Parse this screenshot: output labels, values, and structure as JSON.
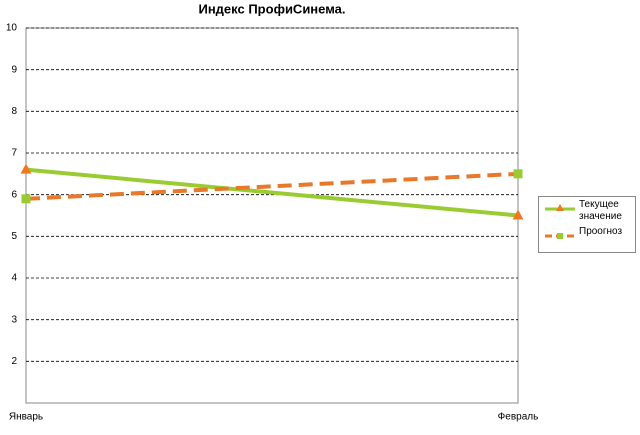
{
  "chart_data": {
    "type": "line",
    "title": "Индекс ПрофиСинема.",
    "categories": [
      "Январь",
      "Февраль"
    ],
    "series": [
      {
        "name": "Текущее значение",
        "color": "#99cc33",
        "marker": "triangle",
        "marker_color": "#f07820",
        "dash": false,
        "values": [
          6.6,
          5.5
        ]
      },
      {
        "name": "Проогноз",
        "color": "#e8782a",
        "marker": "square",
        "marker_color": "#99cc33",
        "dash": true,
        "values": [
          5.9,
          6.5
        ]
      }
    ],
    "ylim": [
      1,
      10
    ],
    "yticks": [
      2,
      3,
      4,
      5,
      6,
      7,
      8,
      9,
      10
    ],
    "grid": true,
    "legend": "right"
  }
}
